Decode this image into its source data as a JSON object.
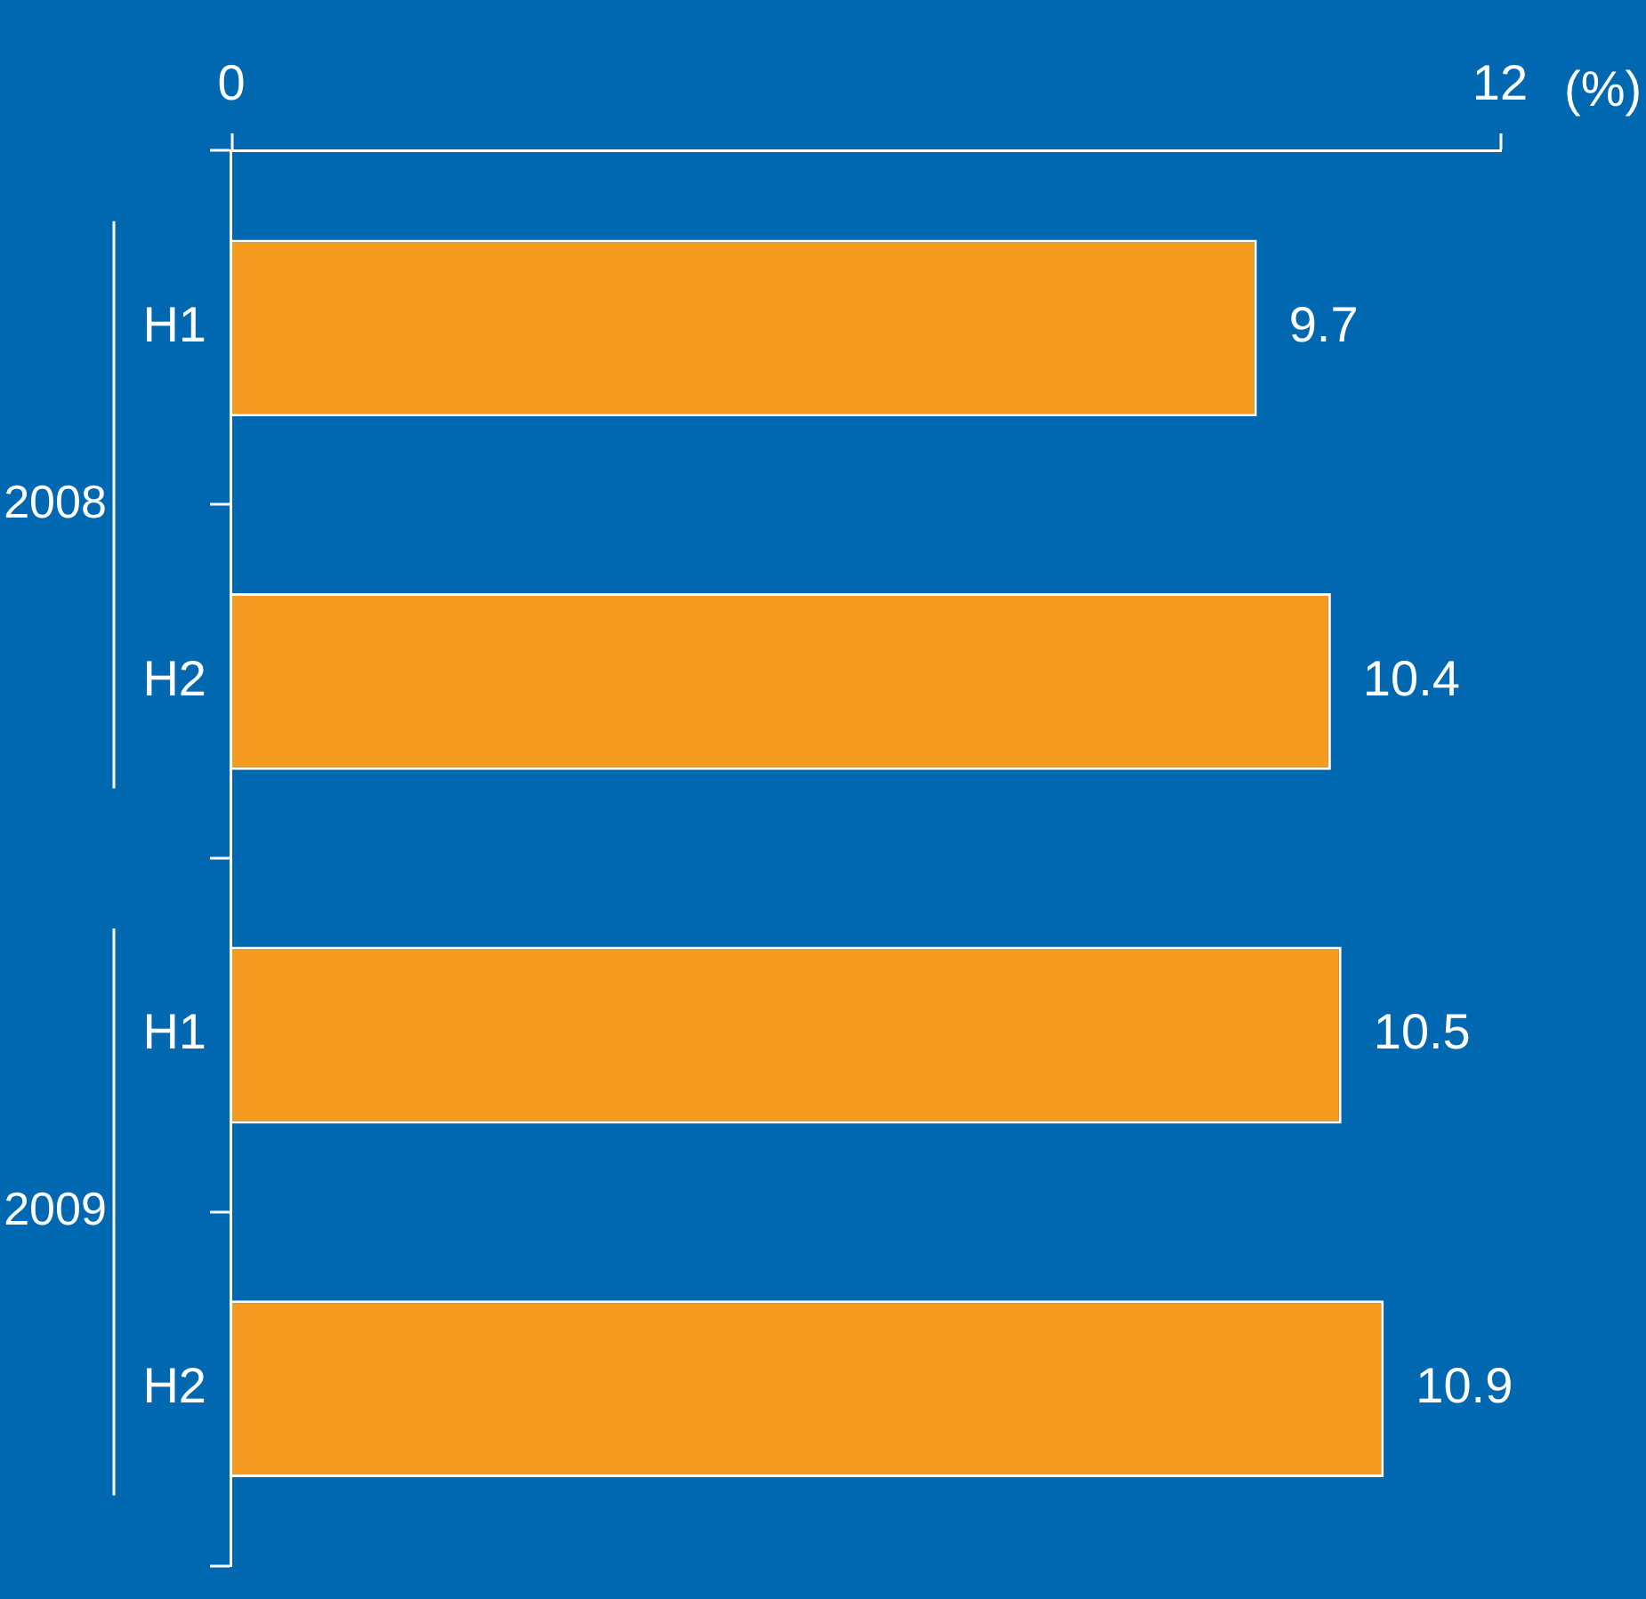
{
  "chart_data": {
    "type": "bar",
    "orientation": "horizontal",
    "ylabel": "(%)",
    "categories": [
      "H1",
      "H2",
      "H1",
      "H2"
    ],
    "values": [
      9.7,
      10.4,
      10.5,
      10.9
    ],
    "color": "#f59c20",
    "xlim": [
      0,
      12
    ],
    "xticks": [
      0,
      12
    ],
    "data_labels": true,
    "grid": false,
    "legend": false,
    "annotations": [
      "2008",
      "2009"
    ]
  }
}
